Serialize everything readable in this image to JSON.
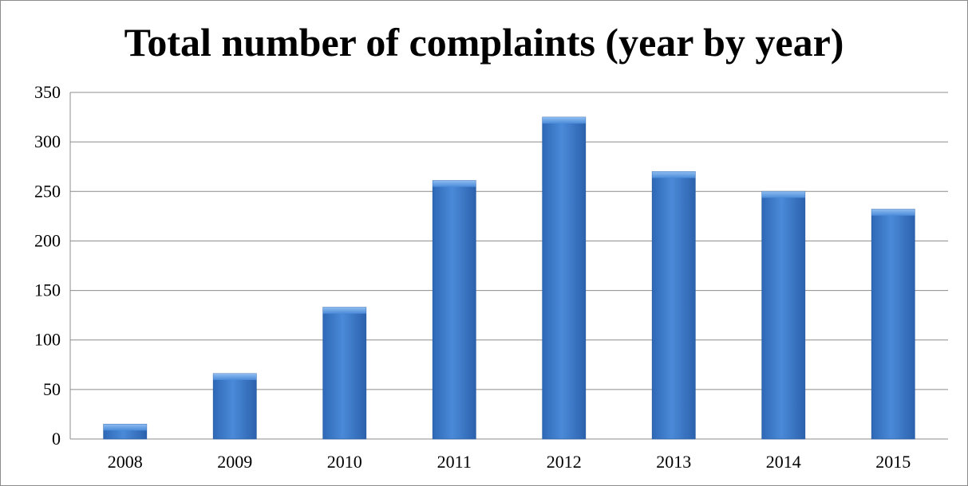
{
  "chart_data": {
    "type": "bar",
    "title": "Total number of complaints (year by year)",
    "xlabel": "",
    "ylabel": "",
    "categories": [
      "2008",
      "2009",
      "2010",
      "2011",
      "2012",
      "2013",
      "2014",
      "2015"
    ],
    "values": [
      15,
      66,
      133,
      261,
      325,
      270,
      250,
      232
    ],
    "ylim": [
      0,
      350
    ],
    "yticks": [
      0,
      50,
      100,
      150,
      200,
      250,
      300,
      350
    ],
    "grid": "horizontal",
    "legend": "none",
    "colors": {
      "bar": "#3f7fd0",
      "bar_dark": "#2a5ea3",
      "bar_light": "#6fa6e8",
      "grid": "#8c8c8c"
    }
  }
}
